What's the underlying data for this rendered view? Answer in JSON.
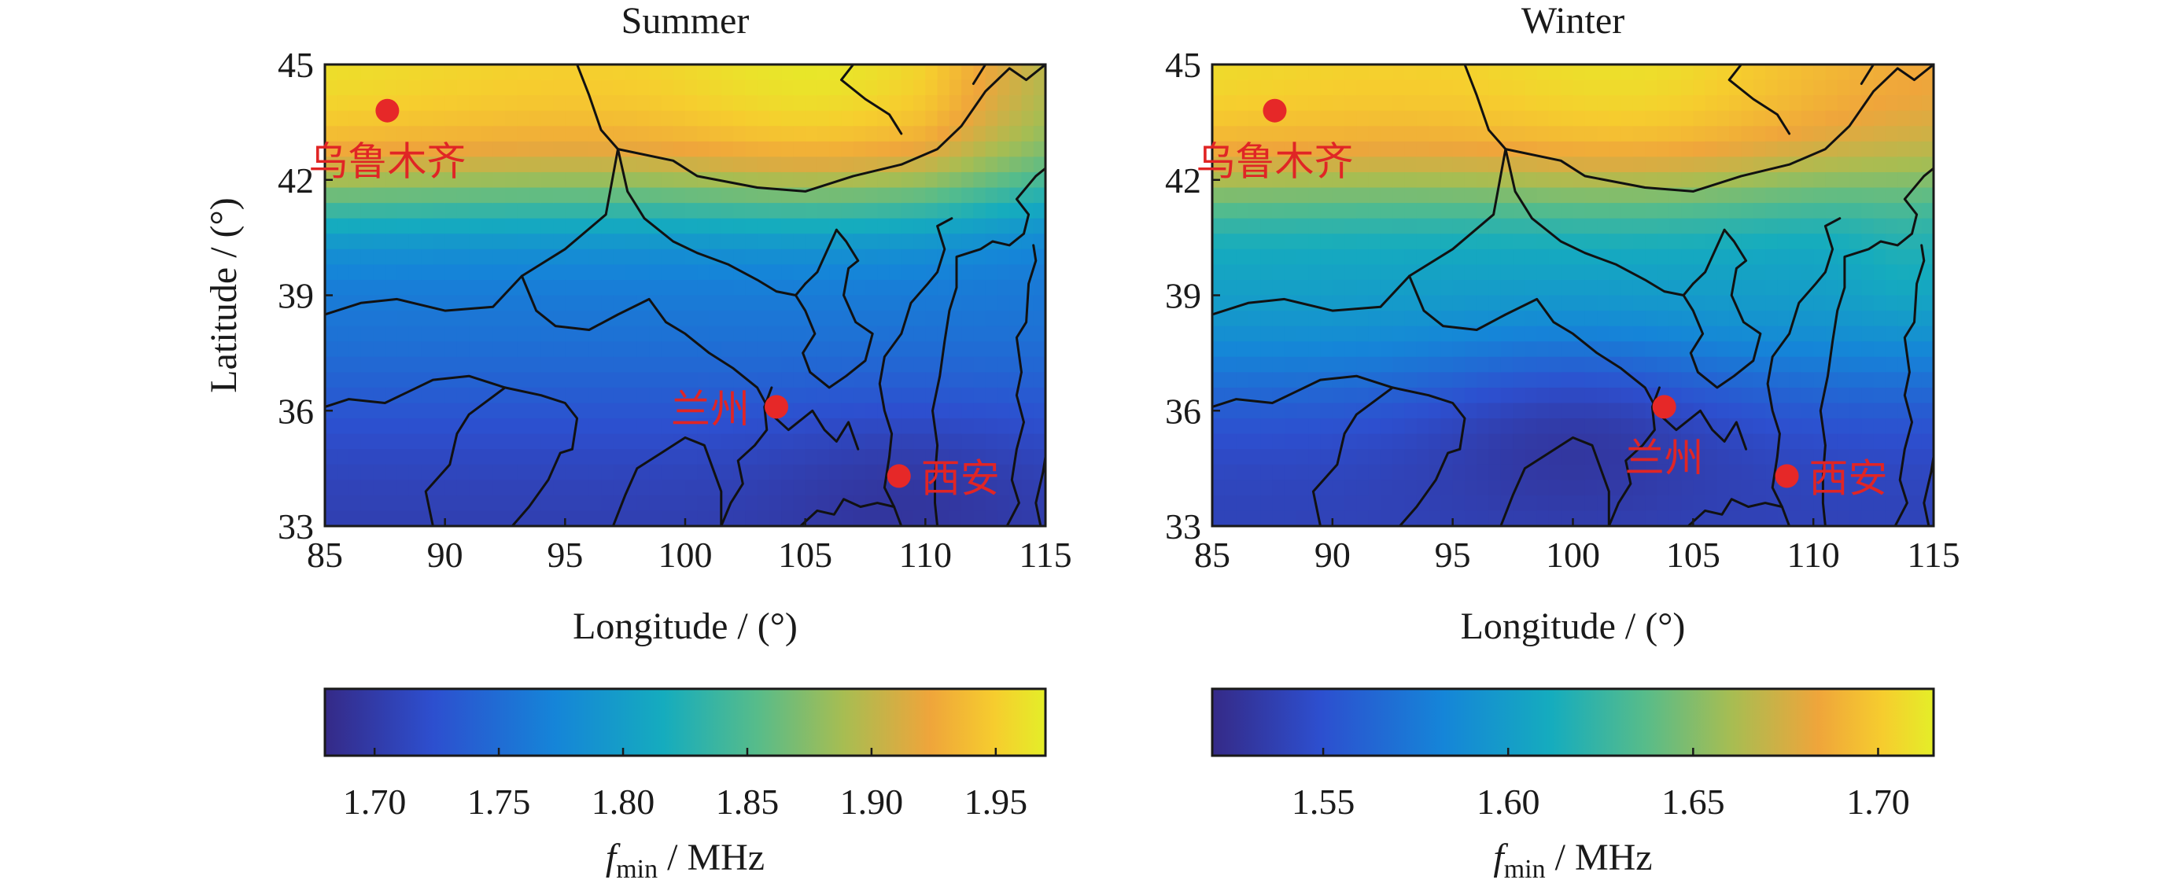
{
  "chart_data": [
    {
      "type": "heatmap",
      "title": "Summer",
      "xlabel": "Longitude / (°)",
      "ylabel": "Latitude / (°)",
      "xlim": [
        85,
        115
      ],
      "ylim": [
        33,
        45
      ],
      "xticks": [
        "85",
        "90",
        "95",
        "100",
        "105",
        "110",
        "115"
      ],
      "yticks": [
        "33",
        "36",
        "39",
        "42",
        "45"
      ],
      "grid": false,
      "colorbar": {
        "placement": "bottom",
        "range": [
          1.68,
          1.97
        ],
        "ticks": [
          "1.70",
          "1.75",
          "1.80",
          "1.85",
          "1.90",
          "1.95"
        ],
        "label_var": "f",
        "label_sub": "min",
        "label_unit": " / MHz"
      },
      "cities": [
        {
          "name": "乌鲁木齐",
          "lon": 87.6,
          "lat": 43.8,
          "label_pos": "below"
        },
        {
          "name": "兰州",
          "lon": 103.8,
          "lat": 36.1,
          "label_pos": "left"
        },
        {
          "name": "西安",
          "lon": 108.9,
          "lat": 34.3,
          "label_pos": "right"
        }
      ]
    },
    {
      "type": "heatmap",
      "title": "Winter",
      "xlabel": "Longitude / (°)",
      "ylabel": "",
      "xlim": [
        85,
        115
      ],
      "ylim": [
        33,
        45
      ],
      "xticks": [
        "85",
        "90",
        "95",
        "100",
        "105",
        "110",
        "115"
      ],
      "yticks": [
        "33",
        "36",
        "39",
        "42",
        "45"
      ],
      "grid": false,
      "colorbar": {
        "placement": "bottom",
        "range": [
          1.52,
          1.715
        ],
        "ticks": [
          "1.55",
          "1.60",
          "1.65",
          "1.70"
        ],
        "label_var": "f",
        "label_sub": "min",
        "label_unit": " / MHz"
      },
      "cities": [
        {
          "name": "乌鲁木齐",
          "lon": 87.6,
          "lat": 43.8,
          "label_pos": "below"
        },
        {
          "name": "兰州",
          "lon": 103.8,
          "lat": 36.1,
          "label_pos": "below"
        },
        {
          "name": "西安",
          "lon": 108.9,
          "lat": 34.3,
          "label_pos": "right"
        }
      ]
    }
  ]
}
